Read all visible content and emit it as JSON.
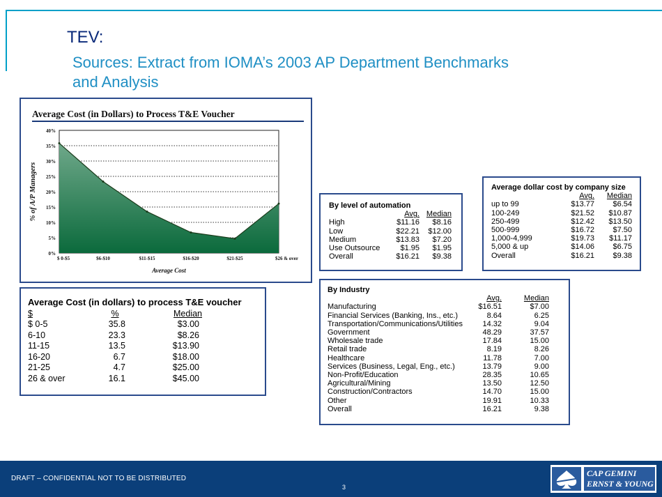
{
  "header": {
    "title": "TEV:",
    "subtitle": "Sources: Extract from IOMA’s  2003 AP Department Benchmarks and Analysis"
  },
  "chart_data": {
    "type": "area",
    "title": "Average Cost (in Dollars) to Process T&E Voucher",
    "xlabel": "Average Cost",
    "ylabel": "% of A/P Managers",
    "categories": [
      "$ 0-$5",
      "$6-$10",
      "$11-$15",
      "$16-$20",
      "$21-$25",
      "$26 & over"
    ],
    "values": [
      35.8,
      23.3,
      13.5,
      6.7,
      4.7,
      16.1
    ],
    "ylim": [
      0,
      40
    ],
    "yticks": [
      "0%",
      "5%",
      "10%",
      "15%",
      "20%",
      "25%",
      "30%",
      "35%",
      "40%"
    ],
    "grid": true,
    "colors": {
      "fill_top": "#6fa88a",
      "fill_bottom": "#0b6a3c",
      "line": "#1a3a1a"
    }
  },
  "cost_table": {
    "title": "Average Cost (in dollars) to process T&E voucher",
    "headers": [
      "$",
      "%",
      "Median"
    ],
    "rows": [
      [
        "$ 0-5",
        "35.8",
        "$3.00"
      ],
      [
        "6-10",
        "23.3",
        "$8.26"
      ],
      [
        "11-15",
        "13.5",
        "$13.90"
      ],
      [
        "16-20",
        "6.7",
        "$18.00"
      ],
      [
        "21-25",
        "4.7",
        "$25.00"
      ],
      [
        "26 & over",
        "16.1",
        "$45.00"
      ]
    ]
  },
  "automation_table": {
    "title": "By level of automation",
    "headers": [
      "Avg.",
      "Median"
    ],
    "rows": [
      [
        "High",
        "$11.16",
        "$8.16"
      ],
      [
        "Low",
        "$22.21",
        "$12.00"
      ],
      [
        "Medium",
        "$13.83",
        "$7.20"
      ],
      [
        "Use Outsource",
        "$1.95",
        "$1.95"
      ],
      [
        "Overall",
        "$16.21",
        "$9.38"
      ]
    ]
  },
  "company_table": {
    "title": "Average dollar cost by company size",
    "headers": [
      "Avg.",
      "Median"
    ],
    "rows": [
      [
        "up to 99",
        "$13.77",
        "$6.54"
      ],
      [
        "100-249",
        "$21.52",
        "$10.87"
      ],
      [
        "250-499",
        "$12.42",
        "$13.50"
      ],
      [
        "500-999",
        "$16.72",
        "$7.50"
      ],
      [
        "1,000-4,999",
        "$19.73",
        "$11.17"
      ],
      [
        "5,000 & up",
        "$14.06",
        "$6.75"
      ],
      [
        "Overall",
        "$16.21",
        "$9.38"
      ]
    ]
  },
  "industry_table": {
    "title": "By Industry",
    "headers": [
      "Avg.",
      "Median"
    ],
    "rows": [
      [
        "Manufacturing",
        "$16.51",
        "$7.00"
      ],
      [
        "Financial Services (Banking, Ins., etc.)",
        "8.64",
        "6.25"
      ],
      [
        "Transportation/Communications/Utilities",
        "14.32",
        "9.04"
      ],
      [
        "Government",
        "48.29",
        "37.57"
      ],
      [
        "Wholesale trade",
        "17.84",
        "15.00"
      ],
      [
        "Retail trade",
        "8.19",
        "8.26"
      ],
      [
        "Healthcare",
        "11.78",
        "7.00"
      ],
      [
        "Services (Business, Legal, Eng., etc.)",
        "13.79",
        "9.00"
      ],
      [
        "Non-Profit/Education",
        "28.35",
        "10.65"
      ],
      [
        "Agricultural/Mining",
        "13.50",
        "12.50"
      ],
      [
        "Construction/Contractors",
        "14.70",
        "15.00"
      ],
      [
        "Other",
        "19.91",
        "10.33"
      ],
      [
        "Overall",
        "16.21",
        "9.38"
      ]
    ]
  },
  "footer": {
    "text": "DRAFT – CONFIDENTIAL NOT TO BE DISTRIBUTED",
    "page_number": "3",
    "logo_line1": "CAP GEMINI",
    "logo_line2": "ERNST & YOUNG"
  }
}
